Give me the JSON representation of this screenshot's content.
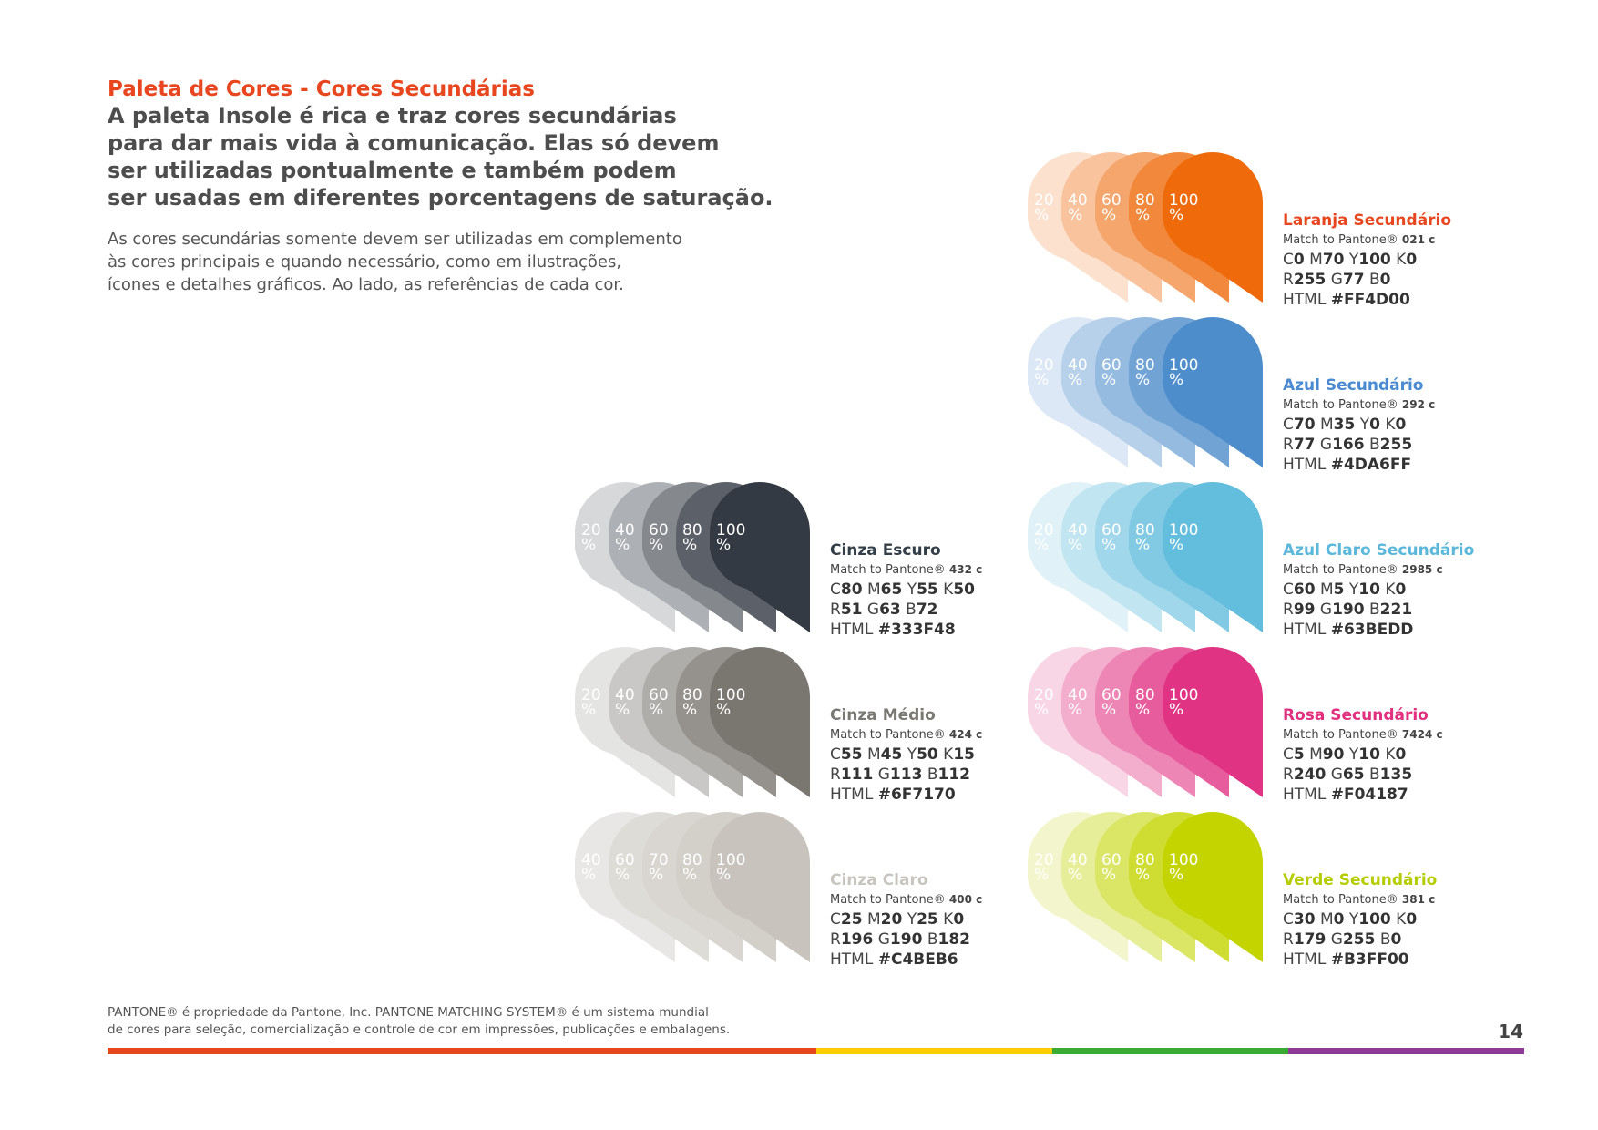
{
  "header": {
    "eyebrow": "Paleta de Cores - Cores Secundárias",
    "headline_lines": [
      "A paleta Insole é rica e traz cores secundárias",
      "para dar mais vida à comunicação. Elas só devem",
      "ser utilizadas pontualmente e também podem",
      "ser usadas em diferentes porcentagens de saturação."
    ],
    "eyebrow_color": "#E8461E"
  },
  "intro_lines": [
    "As cores secundárias somente devem ser utilizadas em complemento",
    "às cores principais e quando necessário, como em ilustrações,",
    "ícones e detalhes gráficos. Ao lado, as referências de cada cor."
  ],
  "swatches": [
    {
      "id": "laranja",
      "name": "Laranja Secundário",
      "name_color": "#E8461E",
      "base_color": "#EE6A0A",
      "pantone_label": "Match to Pantone®",
      "pantone_code": "021 c",
      "cmyk": [
        {
          "k": "C",
          "v": "0"
        },
        {
          "k": "M",
          "v": "70"
        },
        {
          "k": "Y",
          "v": "100"
        },
        {
          "k": "K",
          "v": "0"
        }
      ],
      "rgb": [
        {
          "k": "R",
          "v": "255"
        },
        {
          "k": "G",
          "v": "77"
        },
        {
          "k": "B",
          "v": "0"
        }
      ],
      "html_label": "HTML",
      "html_value": "#FF4D00",
      "tints": [
        {
          "value": 20,
          "label": "20",
          "unit": "%"
        },
        {
          "value": 40,
          "label": "40",
          "unit": "%"
        },
        {
          "value": 60,
          "label": "60",
          "unit": "%"
        },
        {
          "value": 80,
          "label": "80",
          "unit": "%"
        },
        {
          "value": 100,
          "label": "100",
          "unit": "%"
        }
      ]
    },
    {
      "id": "azul",
      "name": "Azul Secundário",
      "name_color": "#4A8AD0",
      "base_color": "#4E8DCB",
      "pantone_label": "Match to Pantone®",
      "pantone_code": "292 c",
      "cmyk": [
        {
          "k": "C",
          "v": "70"
        },
        {
          "k": "M",
          "v": "35"
        },
        {
          "k": "Y",
          "v": "0"
        },
        {
          "k": "K",
          "v": "0"
        }
      ],
      "rgb": [
        {
          "k": "R",
          "v": "77"
        },
        {
          "k": "G",
          "v": "166"
        },
        {
          "k": "B",
          "v": "255"
        }
      ],
      "html_label": "HTML",
      "html_value": "#4DA6FF",
      "tints": [
        {
          "value": 20,
          "label": "20",
          "unit": "%"
        },
        {
          "value": 40,
          "label": "40",
          "unit": "%"
        },
        {
          "value": 60,
          "label": "60",
          "unit": "%"
        },
        {
          "value": 80,
          "label": "80",
          "unit": "%"
        },
        {
          "value": 100,
          "label": "100",
          "unit": "%"
        }
      ]
    },
    {
      "id": "azul-claro",
      "name": "Azul Claro Secundário",
      "name_color": "#5BB8DA",
      "base_color": "#63BDDD",
      "pantone_label": "Match to Pantone®",
      "pantone_code": "2985 c",
      "cmyk": [
        {
          "k": "C",
          "v": "60"
        },
        {
          "k": "M",
          "v": "5"
        },
        {
          "k": "Y",
          "v": "10"
        },
        {
          "k": "K",
          "v": "0"
        }
      ],
      "rgb": [
        {
          "k": "R",
          "v": "99"
        },
        {
          "k": "G",
          "v": "190"
        },
        {
          "k": "B",
          "v": "221"
        }
      ],
      "html_label": "HTML",
      "html_value": "#63BEDD",
      "tints": [
        {
          "value": 20,
          "label": "20",
          "unit": "%"
        },
        {
          "value": 40,
          "label": "40",
          "unit": "%"
        },
        {
          "value": 60,
          "label": "60",
          "unit": "%"
        },
        {
          "value": 80,
          "label": "80",
          "unit": "%"
        },
        {
          "value": 100,
          "label": "100",
          "unit": "%"
        }
      ]
    },
    {
      "id": "rosa",
      "name": "Rosa Secundário",
      "name_color": "#E0307F",
      "base_color": "#E13383",
      "pantone_label": "Match to Pantone®",
      "pantone_code": "7424 c",
      "cmyk": [
        {
          "k": "C",
          "v": "5"
        },
        {
          "k": "M",
          "v": "90"
        },
        {
          "k": "Y",
          "v": "10"
        },
        {
          "k": "K",
          "v": "0"
        }
      ],
      "rgb": [
        {
          "k": "R",
          "v": "240"
        },
        {
          "k": "G",
          "v": "65"
        },
        {
          "k": "B",
          "v": "135"
        }
      ],
      "html_label": "HTML",
      "html_value": "#F04187",
      "tints": [
        {
          "value": 20,
          "label": "20",
          "unit": "%"
        },
        {
          "value": 40,
          "label": "40",
          "unit": "%"
        },
        {
          "value": 60,
          "label": "60",
          "unit": "%"
        },
        {
          "value": 80,
          "label": "80",
          "unit": "%"
        },
        {
          "value": 100,
          "label": "100",
          "unit": "%"
        }
      ]
    },
    {
      "id": "verde",
      "name": "Verde Secundário",
      "name_color": "#B5CC00",
      "base_color": "#C3D400",
      "pantone_label": "Match to Pantone®",
      "pantone_code": "381 c",
      "cmyk": [
        {
          "k": "C",
          "v": "30"
        },
        {
          "k": "M",
          "v": "0"
        },
        {
          "k": "Y",
          "v": "100"
        },
        {
          "k": "K",
          "v": "0"
        }
      ],
      "rgb": [
        {
          "k": "R",
          "v": "179"
        },
        {
          "k": "G",
          "v": "255"
        },
        {
          "k": "B",
          "v": "0"
        }
      ],
      "html_label": "HTML",
      "html_value": "#B3FF00",
      "tints": [
        {
          "value": 20,
          "label": "20",
          "unit": "%"
        },
        {
          "value": 40,
          "label": "40",
          "unit": "%"
        },
        {
          "value": 60,
          "label": "60",
          "unit": "%"
        },
        {
          "value": 80,
          "label": "80",
          "unit": "%"
        },
        {
          "value": 100,
          "label": "100",
          "unit": "%"
        }
      ]
    },
    {
      "id": "cinza-escuro",
      "name": "Cinza Escuro",
      "name_color": "#333F48",
      "base_color": "#333A43",
      "pantone_label": "Match to Pantone®",
      "pantone_code": "432 c",
      "cmyk": [
        {
          "k": "C",
          "v": "80"
        },
        {
          "k": "M",
          "v": "65"
        },
        {
          "k": "Y",
          "v": "55"
        },
        {
          "k": "K",
          "v": "50"
        }
      ],
      "rgb": [
        {
          "k": "R",
          "v": "51"
        },
        {
          "k": "G",
          "v": "63"
        },
        {
          "k": "B",
          "v": "72"
        }
      ],
      "html_label": "HTML",
      "html_value": "#333F48",
      "tints": [
        {
          "value": 20,
          "label": "20",
          "unit": "%"
        },
        {
          "value": 40,
          "label": "40",
          "unit": "%"
        },
        {
          "value": 60,
          "label": "60",
          "unit": "%"
        },
        {
          "value": 80,
          "label": "80",
          "unit": "%"
        },
        {
          "value": 100,
          "label": "100",
          "unit": "%"
        }
      ]
    },
    {
      "id": "cinza-medio",
      "name": "Cinza Médio",
      "name_color": "#7A7873",
      "base_color": "#7A7670",
      "pantone_label": "Match to Pantone®",
      "pantone_code": "424 c",
      "cmyk": [
        {
          "k": "C",
          "v": "55"
        },
        {
          "k": "M",
          "v": "45"
        },
        {
          "k": "Y",
          "v": "50"
        },
        {
          "k": "K",
          "v": "15"
        }
      ],
      "rgb": [
        {
          "k": "R",
          "v": "111"
        },
        {
          "k": "G",
          "v": "113"
        },
        {
          "k": "B",
          "v": "112"
        }
      ],
      "html_label": "HTML",
      "html_value": "#6F7170",
      "tints": [
        {
          "value": 20,
          "label": "20",
          "unit": "%"
        },
        {
          "value": 40,
          "label": "40",
          "unit": "%"
        },
        {
          "value": 60,
          "label": "60",
          "unit": "%"
        },
        {
          "value": 80,
          "label": "80",
          "unit": "%"
        },
        {
          "value": 100,
          "label": "100",
          "unit": "%"
        }
      ]
    },
    {
      "id": "cinza-claro",
      "name": "Cinza Claro",
      "name_color": "#C8C4BE",
      "base_color": "#C8C4BD",
      "pantone_label": "Match to Pantone®",
      "pantone_code": "400 c",
      "cmyk": [
        {
          "k": "C",
          "v": "25"
        },
        {
          "k": "M",
          "v": "20"
        },
        {
          "k": "Y",
          "v": "25"
        },
        {
          "k": "K",
          "v": "0"
        }
      ],
      "rgb": [
        {
          "k": "R",
          "v": "196"
        },
        {
          "k": "G",
          "v": "190"
        },
        {
          "k": "B",
          "v": "182"
        }
      ],
      "html_label": "HTML",
      "html_value": "#C4BEB6",
      "tints": [
        {
          "value": 40,
          "label": "40",
          "unit": "%"
        },
        {
          "value": 60,
          "label": "60",
          "unit": "%"
        },
        {
          "value": 70,
          "label": "70",
          "unit": "%"
        },
        {
          "value": 80,
          "label": "80",
          "unit": "%"
        },
        {
          "value": 100,
          "label": "100",
          "unit": "%"
        }
      ]
    }
  ],
  "footer": {
    "note_lines": [
      "PANTONE® é propriedade da Pantone, Inc. PANTONE MATCHING SYSTEM® é um sistema mundial",
      "de cores para seleção, comercialização e controle de cor em impressões, publicações e embalagens."
    ],
    "page_number": "14",
    "bar_colors": [
      "#E8461E",
      "#FFCC00",
      "#3AAA35",
      "#8E3A96"
    ],
    "bar_weights": [
      3,
      1,
      1,
      1
    ]
  }
}
